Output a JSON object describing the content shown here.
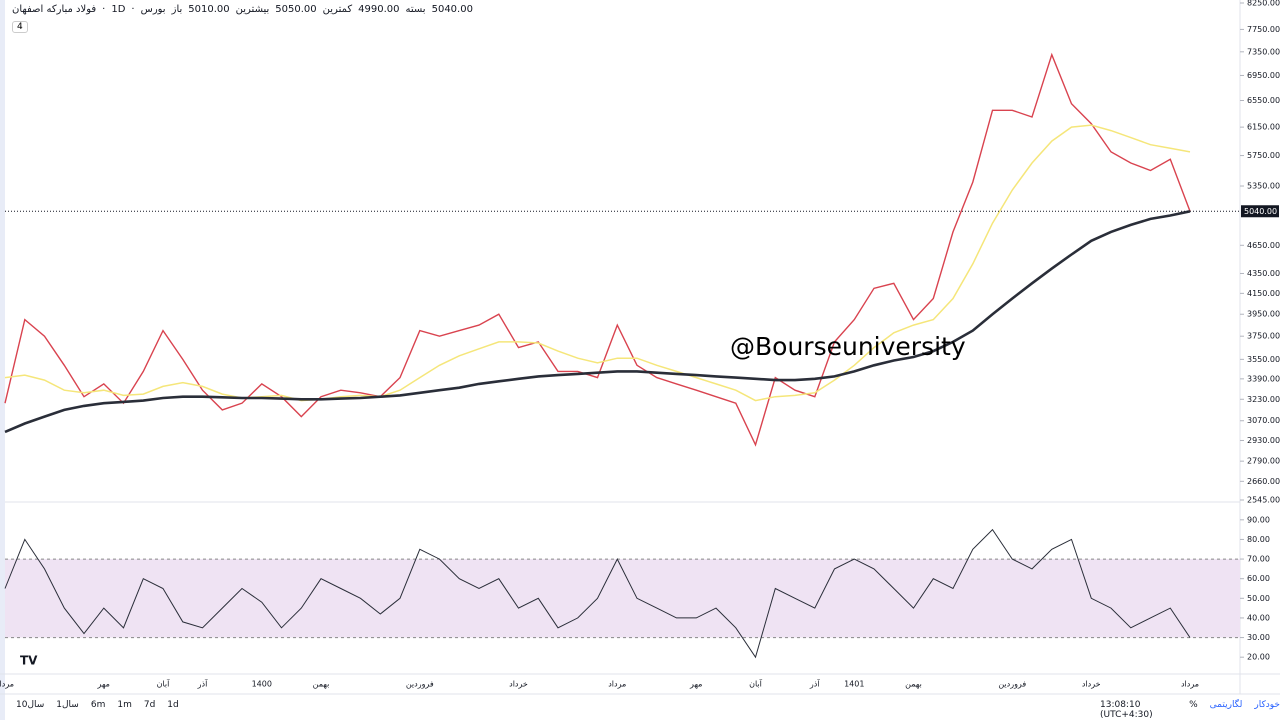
{
  "header": {
    "title": "فولاد مبارکه اصفهان",
    "interval": "1D",
    "exchange": "بورس",
    "ohlc": [
      {
        "label": "باز",
        "value": "5010.00"
      },
      {
        "label": "بیشترین",
        "value": "5050.00"
      },
      {
        "label": "کمترین",
        "value": "4990.00"
      },
      {
        "label": "بسته",
        "value": "5040.00"
      }
    ],
    "badge": "4",
    "watermark": "@Bourseuniversity"
  },
  "toolbar": {
    "ranges": [
      "10سال",
      "1سال",
      "6m",
      "1m",
      "7d",
      "1d"
    ],
    "clock": "13:08:10 (UTC+4:30)",
    "percent": "%",
    "log": "لگاریتمی",
    "auto": "خودکار"
  },
  "chart_data": [
    {
      "type": "line",
      "log_scale": true,
      "categories": [
        "مرداد",
        null,
        null,
        null,
        null,
        "مهر",
        null,
        null,
        "آبان",
        null,
        "آذر",
        null,
        null,
        "1400",
        null,
        null,
        "بهمن",
        null,
        null,
        null,
        null,
        "فروردین",
        null,
        null,
        null,
        null,
        "خرداد",
        null,
        null,
        null,
        null,
        "مرداد",
        null,
        null,
        null,
        "مهر",
        null,
        null,
        "آبان",
        null,
        null,
        "آذر",
        null,
        "1401",
        null,
        null,
        "بهمن",
        null,
        null,
        null,
        null,
        "فروردین",
        null,
        null,
        null,
        "خرداد",
        null,
        null,
        null,
        null,
        "مرداد"
      ],
      "ylim": [
        2545,
        8250
      ],
      "yticks": [
        {
          "value": 2545,
          "label": "2545.00"
        },
        {
          "value": 2660,
          "label": "2660.00"
        },
        {
          "value": 2790,
          "label": "2790.00"
        },
        {
          "value": 2930,
          "label": "2930.00"
        },
        {
          "value": 3070,
          "label": "3070.00"
        },
        {
          "value": 3230,
          "label": "3230.00"
        },
        {
          "value": 3390,
          "label": "3390.00"
        },
        {
          "value": 3550,
          "label": "3550.00"
        },
        {
          "value": 3750,
          "label": "3750.00"
        },
        {
          "value": 3950,
          "label": "3950.00"
        },
        {
          "value": 4150,
          "label": "4150.00"
        },
        {
          "value": 4350,
          "label": "4350.00"
        },
        {
          "value": 4650,
          "label": "4650.00"
        },
        {
          "value": 5350,
          "label": "5350.00"
        },
        {
          "value": 5750,
          "label": "5750.00"
        },
        {
          "value": 6150,
          "label": "6150.00"
        },
        {
          "value": 6550,
          "label": "6550.00"
        },
        {
          "value": 6950,
          "label": "6950.00"
        },
        {
          "value": 7350,
          "label": "7350.00"
        },
        {
          "value": 7750,
          "label": "7750.00"
        },
        {
          "value": 8250,
          "label": "8250.00"
        }
      ],
      "last_price": {
        "value": 5040,
        "label": "5040.00"
      },
      "series": [
        {
          "color": "#d9434f",
          "width": 1.4,
          "values": [
            3200,
            3900,
            3750,
            3500,
            3250,
            3350,
            3200,
            3450,
            3800,
            3550,
            3300,
            3150,
            3200,
            3350,
            3250,
            3100,
            3250,
            3300,
            3280,
            3250,
            3400,
            3800,
            3750,
            3800,
            3850,
            3950,
            3650,
            3700,
            3450,
            3450,
            3400,
            3850,
            3500,
            3400,
            3350,
            3300,
            3250,
            3200,
            2900,
            3400,
            3300,
            3250,
            3700,
            3900,
            4200,
            4250,
            3900,
            4100,
            4800,
            5400,
            6400,
            6400,
            6300,
            7300,
            6500,
            6200,
            5800,
            5650,
            5550,
            5700,
            5040
          ]
        },
        {
          "color": "#f5e67a",
          "width": 1.5,
          "values": [
            3400,
            3420,
            3380,
            3300,
            3280,
            3300,
            3260,
            3270,
            3330,
            3360,
            3330,
            3270,
            3240,
            3250,
            3260,
            3220,
            3230,
            3250,
            3260,
            3250,
            3300,
            3400,
            3500,
            3580,
            3640,
            3700,
            3700,
            3690,
            3620,
            3560,
            3520,
            3560,
            3560,
            3500,
            3450,
            3400,
            3350,
            3300,
            3220,
            3250,
            3260,
            3280,
            3380,
            3500,
            3650,
            3780,
            3850,
            3900,
            4100,
            4450,
            4900,
            5300,
            5650,
            5950,
            6150,
            6180,
            6100,
            6000,
            5900,
            5850,
            5800
          ]
        },
        {
          "color": "#2a2e39",
          "width": 2.6,
          "values": [
            2990,
            3050,
            3100,
            3150,
            3180,
            3200,
            3210,
            3220,
            3240,
            3250,
            3250,
            3245,
            3240,
            3240,
            3235,
            3230,
            3230,
            3235,
            3240,
            3250,
            3260,
            3280,
            3300,
            3320,
            3350,
            3370,
            3390,
            3410,
            3420,
            3430,
            3440,
            3450,
            3450,
            3440,
            3430,
            3420,
            3410,
            3400,
            3390,
            3380,
            3380,
            3390,
            3410,
            3450,
            3500,
            3540,
            3570,
            3620,
            3700,
            3800,
            3950,
            4100,
            4250,
            4400,
            4550,
            4700,
            4800,
            4880,
            4950,
            4990,
            5040
          ]
        }
      ]
    },
    {
      "type": "line",
      "ylim": [
        15,
        95
      ],
      "yticks": [
        {
          "value": 20,
          "label": "20.00"
        },
        {
          "value": 30,
          "label": "30.00"
        },
        {
          "value": 40,
          "label": "40.00"
        },
        {
          "value": 50,
          "label": "50.00"
        },
        {
          "value": 60,
          "label": "60.00"
        },
        {
          "value": 70,
          "label": "70.00"
        },
        {
          "value": 80,
          "label": "80.00"
        },
        {
          "value": 90,
          "label": "90.00"
        }
      ],
      "band": {
        "low": 30,
        "high": 70,
        "color": "#efe3f3"
      },
      "series": [
        {
          "color": "#2a2e39",
          "width": 1,
          "values": [
            55,
            80,
            65,
            45,
            32,
            45,
            35,
            60,
            55,
            38,
            35,
            45,
            55,
            48,
            35,
            45,
            60,
            55,
            50,
            42,
            50,
            75,
            70,
            60,
            55,
            60,
            45,
            50,
            35,
            40,
            50,
            70,
            50,
            45,
            40,
            40,
            45,
            35,
            20,
            55,
            50,
            45,
            65,
            70,
            65,
            55,
            45,
            60,
            55,
            75,
            85,
            70,
            65,
            75,
            80,
            50,
            45,
            35,
            40,
            45,
            30
          ]
        }
      ]
    }
  ]
}
